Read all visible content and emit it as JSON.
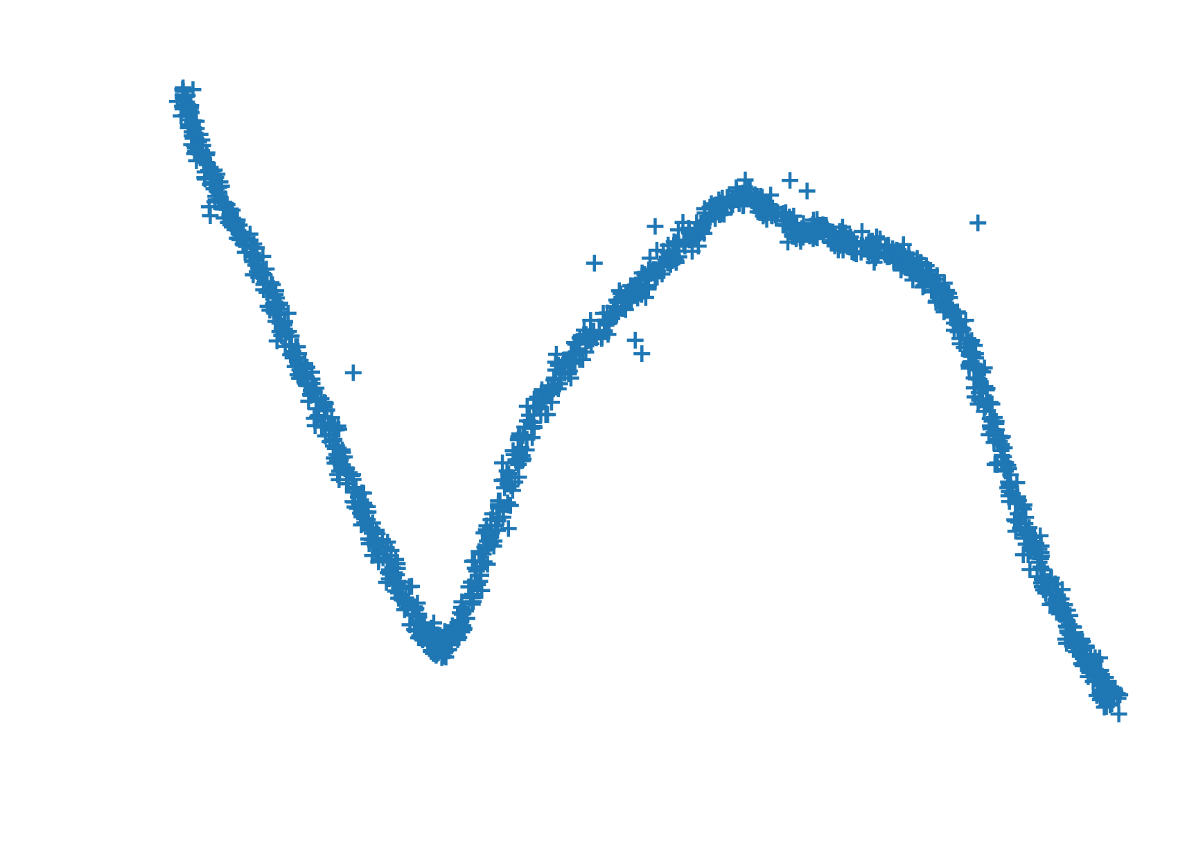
{
  "chart_data": {
    "type": "scatter",
    "title": "",
    "xlabel": "",
    "ylabel": "",
    "marker": "plus",
    "color": "#1f77b4",
    "axes_visible": false,
    "grid": false,
    "legend": "none",
    "xlim": [
      0,
      100
    ],
    "ylim": [
      0,
      100
    ],
    "outliers": [
      [
        18.6,
        56.6
      ],
      [
        38.2,
        51.9
      ],
      [
        44.0,
        72.1
      ],
      [
        48.3,
        61.2
      ],
      [
        49.0,
        59.3
      ],
      [
        50.4,
        77.3
      ],
      [
        64.6,
        83.8
      ],
      [
        66.4,
        82.3
      ],
      [
        84.4,
        77.8
      ]
    ],
    "series": [
      {
        "name": "",
        "points": [
          [
            0.5,
            96.0
          ],
          [
            1.0,
            94.3
          ],
          [
            1.8,
            91.2
          ],
          [
            2.6,
            88.0
          ],
          [
            3.5,
            84.6
          ],
          [
            4.5,
            81.2
          ],
          [
            5.8,
            78.0
          ],
          [
            7.2,
            75.5
          ],
          [
            8.5,
            72.3
          ],
          [
            9.6,
            68.8
          ],
          [
            10.7,
            65.2
          ],
          [
            11.7,
            61.8
          ],
          [
            12.8,
            58.3
          ],
          [
            14.0,
            54.8
          ],
          [
            15.1,
            51.5
          ],
          [
            16.3,
            47.8
          ],
          [
            17.4,
            44.3
          ],
          [
            18.5,
            40.5
          ],
          [
            19.6,
            37.0
          ],
          [
            20.8,
            33.6
          ],
          [
            22.0,
            30.3
          ],
          [
            23.1,
            27.2
          ],
          [
            24.2,
            24.2
          ],
          [
            25.4,
            21.3
          ],
          [
            26.2,
            19.4
          ],
          [
            27.0,
            18.4
          ],
          [
            27.7,
            18.0
          ],
          [
            28.6,
            18.6
          ],
          [
            29.6,
            20.4
          ],
          [
            30.8,
            24.0
          ],
          [
            32.0,
            28.8
          ],
          [
            33.1,
            33.6
          ],
          [
            34.3,
            38.5
          ],
          [
            35.5,
            43.3
          ],
          [
            36.8,
            47.9
          ],
          [
            38.2,
            51.8
          ],
          [
            39.8,
            55.0
          ],
          [
            41.5,
            58.3
          ],
          [
            43.0,
            61.0
          ],
          [
            44.6,
            63.5
          ],
          [
            46.2,
            65.8
          ],
          [
            47.8,
            67.8
          ],
          [
            49.2,
            69.3
          ],
          [
            50.6,
            70.9
          ],
          [
            52.1,
            73.1
          ],
          [
            53.6,
            75.3
          ],
          [
            55.1,
            77.5
          ],
          [
            56.6,
            79.5
          ],
          [
            58.1,
            80.9
          ],
          [
            59.6,
            81.6
          ],
          [
            61.1,
            80.9
          ],
          [
            62.6,
            79.3
          ],
          [
            64.1,
            77.6
          ],
          [
            65.6,
            76.6
          ],
          [
            67.1,
            76.9
          ],
          [
            68.6,
            76.3
          ],
          [
            70.1,
            75.4
          ],
          [
            71.6,
            74.9
          ],
          [
            73.1,
            74.4
          ],
          [
            74.6,
            73.8
          ],
          [
            76.1,
            73.3
          ],
          [
            77.6,
            71.8
          ],
          [
            79.1,
            70.0
          ],
          [
            80.3,
            68.3
          ],
          [
            81.4,
            66.2
          ],
          [
            82.5,
            63.3
          ],
          [
            83.5,
            59.8
          ],
          [
            84.5,
            55.8
          ],
          [
            85.5,
            51.3
          ],
          [
            86.5,
            46.5
          ],
          [
            87.5,
            42.0
          ],
          [
            88.5,
            37.8
          ],
          [
            89.6,
            33.8
          ],
          [
            90.7,
            30.3
          ],
          [
            91.8,
            26.7
          ],
          [
            92.9,
            23.7
          ],
          [
            94.0,
            20.7
          ],
          [
            95.0,
            18.2
          ],
          [
            96.0,
            15.7
          ],
          [
            97.0,
            13.3
          ],
          [
            98.0,
            11.3
          ],
          [
            99.0,
            9.8
          ]
        ]
      }
    ]
  }
}
